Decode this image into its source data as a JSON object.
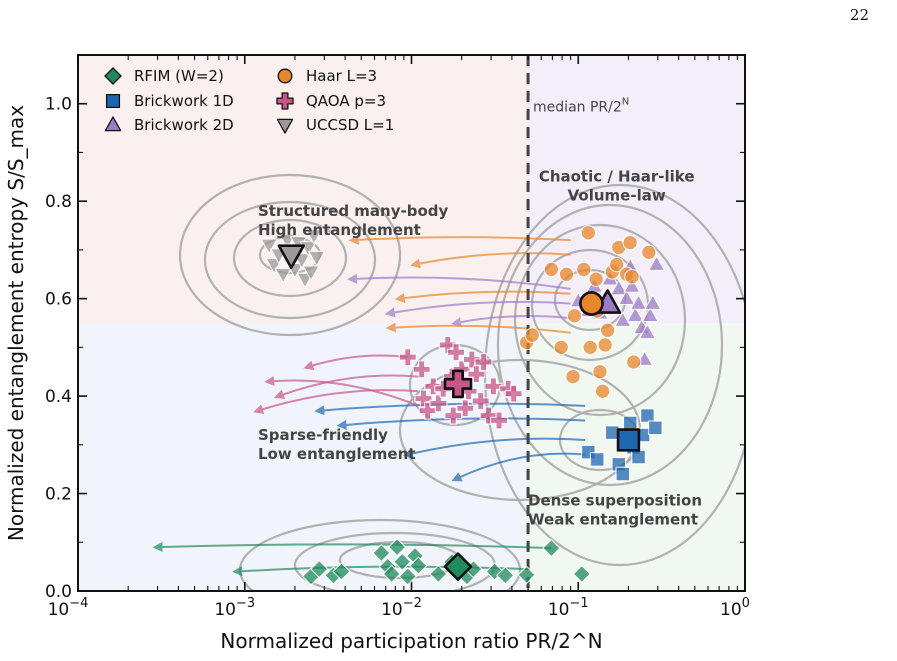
{
  "page": {
    "number": "22"
  },
  "chart_data": {
    "type": "scatter",
    "xlabel": "Normalized participation ratio PR/2^N",
    "ylabel": "Normalized entanglement entropy S/S_max",
    "xscale": "log",
    "xlim": [
      0.0001,
      1
    ],
    "ylim": [
      0,
      1.1
    ],
    "x_ticks": [
      {
        "value": 0.0001,
        "base": "10",
        "exp": "−4"
      },
      {
        "value": 0.001,
        "base": "10",
        "exp": "−3"
      },
      {
        "value": 0.01,
        "base": "10",
        "exp": "−2"
      },
      {
        "value": 0.1,
        "base": "10",
        "exp": "−1"
      },
      {
        "value": 1,
        "base": "10",
        "exp": "0"
      }
    ],
    "y_ticks": [
      {
        "value": 0.0,
        "label": "0.0"
      },
      {
        "value": 0.2,
        "label": "0.2"
      },
      {
        "value": 0.4,
        "label": "0.4"
      },
      {
        "value": 0.6,
        "label": "0.6"
      },
      {
        "value": 0.8,
        "label": "0.8"
      },
      {
        "value": 1.0,
        "label": "1.0"
      }
    ],
    "median_line": {
      "x": 0.05,
      "label": "median PR/2",
      "label_sup": "N"
    },
    "region_split_y": 0.55,
    "regions": [
      {
        "line1": "Structured many-body",
        "line2": "High entanglement",
        "x": 0.0012,
        "y": 0.77,
        "anchor": "start",
        "color": "#fbf0f0"
      },
      {
        "line1": "Chaotic / Haar-like",
        "line2": "Volume-law",
        "x": 0.17,
        "y": 0.84,
        "anchor": "middle",
        "color": "#f4eef9"
      },
      {
        "line1": "Sparse-friendly",
        "line2": "Low entanglement",
        "x": 0.0012,
        "y": 0.31,
        "anchor": "start",
        "color": "#f1f5fb"
      },
      {
        "line1": "Dense superposition",
        "line2": "Weak entanglement",
        "x": 0.05,
        "y": 0.175,
        "anchor": "start",
        "color": "#f1f7f1"
      }
    ],
    "legend": {
      "placement": "top-left",
      "col1": [
        {
          "label": "RFIM (W=2)",
          "marker": "diamond",
          "color": "#1f8a5c"
        },
        {
          "label": "Brickwork 1D",
          "marker": "square",
          "color": "#1f66b0"
        },
        {
          "label": "Brickwork 2D",
          "marker": "triangle-up",
          "color": "#9c7cc6"
        }
      ],
      "col2": [
        {
          "label": "Haar L=3",
          "marker": "circle",
          "color": "#e8862b"
        },
        {
          "label": "QAOA p=3",
          "marker": "plus",
          "color": "#c9558a"
        },
        {
          "label": "UCCSD L=1",
          "marker": "triangle-down",
          "color": "#9a9a9a"
        }
      ]
    },
    "series": [
      {
        "name": "RFIM (W=2)",
        "marker": "diamond",
        "color": "#1f8a5c",
        "edge": "#ffffff",
        "centroid": [
          0.019,
          0.05
        ],
        "points": [
          [
            0.0025,
            0.03
          ],
          [
            0.0028,
            0.045
          ],
          [
            0.0034,
            0.032
          ],
          [
            0.0038,
            0.04
          ],
          [
            0.0066,
            0.078
          ],
          [
            0.0072,
            0.05
          ],
          [
            0.0076,
            0.035
          ],
          [
            0.0082,
            0.09
          ],
          [
            0.0088,
            0.06
          ],
          [
            0.0095,
            0.03
          ],
          [
            0.0105,
            0.072
          ],
          [
            0.011,
            0.052
          ],
          [
            0.0145,
            0.035
          ],
          [
            0.0175,
            0.06
          ],
          [
            0.0215,
            0.03
          ],
          [
            0.0235,
            0.045
          ],
          [
            0.0315,
            0.04
          ],
          [
            0.0365,
            0.032
          ],
          [
            0.049,
            0.033
          ],
          [
            0.069,
            0.088
          ],
          [
            0.105,
            0.035
          ]
        ],
        "trails": [
          [
            [
              0.069,
              0.088
            ],
            [
              0.0003,
              0.09
            ]
          ],
          [
            [
              0.049,
              0.045
            ],
            [
              0.0009,
              0.04
            ]
          ]
        ]
      },
      {
        "name": "Brickwork 1D",
        "marker": "square",
        "color": "#1f66b0",
        "edge": "#ffffff",
        "centroid": [
          0.2,
          0.31
        ],
        "points": [
          [
            0.115,
            0.285
          ],
          [
            0.13,
            0.27
          ],
          [
            0.16,
            0.325
          ],
          [
            0.175,
            0.26
          ],
          [
            0.185,
            0.24
          ],
          [
            0.205,
            0.345
          ],
          [
            0.215,
            0.295
          ],
          [
            0.23,
            0.275
          ],
          [
            0.245,
            0.32
          ],
          [
            0.26,
            0.36
          ],
          [
            0.29,
            0.335
          ]
        ],
        "trails": [
          [
            [
              0.11,
              0.38
            ],
            [
              0.0028,
              0.37
            ]
          ],
          [
            [
              0.11,
              0.35
            ],
            [
              0.0038,
              0.34
            ]
          ],
          [
            [
              0.11,
              0.31
            ],
            [
              0.0095,
              0.28
            ]
          ],
          [
            [
              0.11,
              0.28
            ],
            [
              0.0185,
              0.23
            ]
          ]
        ]
      },
      {
        "name": "Brickwork 2D",
        "marker": "triangle-up",
        "color": "#9c7cc6",
        "edge": "#ffffff",
        "centroid": [
          0.15,
          0.59
        ],
        "points": [
          [
            0.1,
            0.595
          ],
          [
            0.115,
            0.575
          ],
          [
            0.125,
            0.625
          ],
          [
            0.135,
            0.57
          ],
          [
            0.145,
            0.6
          ],
          [
            0.155,
            0.64
          ],
          [
            0.165,
            0.58
          ],
          [
            0.175,
            0.62
          ],
          [
            0.185,
            0.555
          ],
          [
            0.195,
            0.6
          ],
          [
            0.205,
            0.665
          ],
          [
            0.21,
            0.625
          ],
          [
            0.22,
            0.565
          ],
          [
            0.23,
            0.59
          ],
          [
            0.24,
            0.54
          ],
          [
            0.25,
            0.475
          ],
          [
            0.26,
            0.53
          ],
          [
            0.27,
            0.565
          ],
          [
            0.28,
            0.59
          ],
          [
            0.295,
            0.67
          ]
        ],
        "trails": [
          [
            [
              0.09,
              0.62
            ],
            [
              0.0044,
              0.64
            ]
          ],
          [
            [
              0.09,
              0.59
            ],
            [
              0.0074,
              0.57
            ]
          ],
          [
            [
              0.09,
              0.56
            ],
            [
              0.0185,
              0.55
            ]
          ]
        ]
      },
      {
        "name": "Haar L=3",
        "marker": "circle",
        "color": "#e8862b",
        "edge": "#ffffff",
        "centroid": [
          0.12,
          0.59
        ],
        "points": [
          [
            0.049,
            0.51
          ],
          [
            0.053,
            0.525
          ],
          [
            0.069,
            0.66
          ],
          [
            0.079,
            0.5
          ],
          [
            0.085,
            0.65
          ],
          [
            0.093,
            0.44
          ],
          [
            0.095,
            0.565
          ],
          [
            0.108,
            0.66
          ],
          [
            0.115,
            0.735
          ],
          [
            0.118,
            0.5
          ],
          [
            0.128,
            0.64
          ],
          [
            0.13,
            0.575
          ],
          [
            0.135,
            0.45
          ],
          [
            0.14,
            0.41
          ],
          [
            0.145,
            0.505
          ],
          [
            0.15,
            0.535
          ],
          [
            0.16,
            0.655
          ],
          [
            0.17,
            0.67
          ],
          [
            0.175,
            0.705
          ],
          [
            0.195,
            0.65
          ],
          [
            0.205,
            0.715
          ],
          [
            0.21,
            0.645
          ],
          [
            0.215,
            0.47
          ],
          [
            0.265,
            0.695
          ]
        ],
        "trails": [
          [
            [
              0.09,
              0.72
            ],
            [
              0.0045,
              0.72
            ]
          ],
          [
            [
              0.09,
              0.69
            ],
            [
              0.0105,
              0.67
            ]
          ],
          [
            [
              0.09,
              0.61
            ],
            [
              0.0085,
              0.6
            ]
          ],
          [
            [
              0.09,
              0.53
            ],
            [
              0.0075,
              0.54
            ]
          ]
        ]
      },
      {
        "name": "QAOA p=3",
        "marker": "plus",
        "color": "#c9558a",
        "edge": "#ffffff",
        "centroid": [
          0.019,
          0.425
        ],
        "points": [
          [
            0.0095,
            0.48
          ],
          [
            0.0115,
            0.455
          ],
          [
            0.0118,
            0.395
          ],
          [
            0.0125,
            0.37
          ],
          [
            0.0135,
            0.42
          ],
          [
            0.0145,
            0.385
          ],
          [
            0.0155,
            0.415
          ],
          [
            0.0165,
            0.505
          ],
          [
            0.0175,
            0.44
          ],
          [
            0.0178,
            0.36
          ],
          [
            0.0185,
            0.49
          ],
          [
            0.02,
            0.455
          ],
          [
            0.021,
            0.375
          ],
          [
            0.022,
            0.41
          ],
          [
            0.023,
            0.475
          ],
          [
            0.0245,
            0.445
          ],
          [
            0.026,
            0.39
          ],
          [
            0.027,
            0.47
          ],
          [
            0.029,
            0.36
          ],
          [
            0.031,
            0.42
          ],
          [
            0.0335,
            0.35
          ],
          [
            0.038,
            0.415
          ],
          [
            0.041,
            0.405
          ]
        ],
        "trails": [
          [
            [
              0.0095,
              0.48
            ],
            [
              0.0024,
              0.46
            ]
          ],
          [
            [
              0.011,
              0.44
            ],
            [
              0.0016,
              0.4
            ]
          ],
          [
            [
              0.011,
              0.41
            ],
            [
              0.0012,
              0.37
            ]
          ],
          [
            [
              0.011,
              0.38
            ],
            [
              0.0014,
              0.43
            ]
          ]
        ]
      },
      {
        "name": "UCCSD L=1",
        "marker": "triangle-down",
        "color": "#9a9a9a",
        "edge": "#ffffff",
        "centroid": [
          0.0019,
          0.69
        ],
        "points": [
          [
            0.0014,
            0.71
          ],
          [
            0.0015,
            0.67
          ],
          [
            0.0016,
            0.69
          ],
          [
            0.0017,
            0.65
          ],
          [
            0.0018,
            0.72
          ],
          [
            0.0019,
            0.7
          ],
          [
            0.002,
            0.66
          ],
          [
            0.0021,
            0.715
          ],
          [
            0.0022,
            0.68
          ],
          [
            0.0023,
            0.64
          ],
          [
            0.0024,
            0.705
          ],
          [
            0.0025,
            0.655
          ],
          [
            0.0026,
            0.73
          ],
          [
            0.0027,
            0.685
          ]
        ],
        "trails": []
      }
    ],
    "contour_color": "#aaaaaa"
  }
}
